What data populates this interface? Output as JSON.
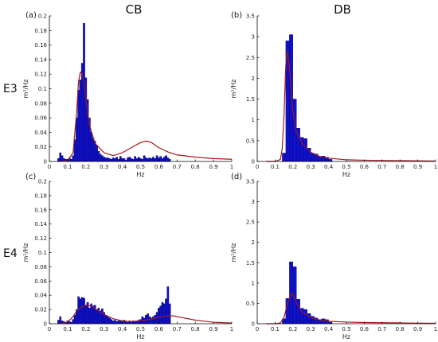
{
  "column_titles": [
    "CB",
    "DB"
  ],
  "row_labels": [
    "E3",
    "E4"
  ],
  "colors": {
    "bar": "#1010c8",
    "bar_edge": "#00007a",
    "fit": "#a0181c",
    "axis": "#000000"
  },
  "chart_data": [
    {
      "panel": "(a)",
      "type": "bar",
      "xlabel": "Hz",
      "ylabel": "m²/Hz",
      "xlim": [
        0,
        1
      ],
      "ylim": [
        0,
        0.2
      ],
      "grid": false,
      "x_ticks": [
        "0",
        "0.1",
        "0.2",
        "0.3",
        "0.4",
        "0.5",
        "0.6",
        "0.7",
        "0.8",
        "0.9",
        "1"
      ],
      "y_ticks": [
        "0",
        "0.02",
        "0.04",
        "0.06",
        "0.08",
        "0.1",
        "0.12",
        "0.14",
        "0.16",
        "0.18",
        "0.2"
      ],
      "bin_width": 0.0098,
      "bars": {
        "x": [
          0.05,
          0.06,
          0.07,
          0.08,
          0.09,
          0.1,
          0.11,
          0.12,
          0.13,
          0.14,
          0.15,
          0.16,
          0.17,
          0.18,
          0.19,
          0.2,
          0.21,
          0.22,
          0.23,
          0.24,
          0.25,
          0.26,
          0.27,
          0.28,
          0.29,
          0.3,
          0.31,
          0.32,
          0.33,
          0.34,
          0.35,
          0.36,
          0.37,
          0.38,
          0.39,
          0.4,
          0.41,
          0.42,
          0.43,
          0.44,
          0.45,
          0.46,
          0.47,
          0.48,
          0.49,
          0.5,
          0.51,
          0.52,
          0.53,
          0.54,
          0.55,
          0.56,
          0.57,
          0.58,
          0.59,
          0.6,
          0.61,
          0.62,
          0.63,
          0.64,
          0.65,
          0.66
        ],
        "values": [
          0.004,
          0.012,
          0.008,
          0.004,
          0.003,
          0.003,
          0.005,
          0.003,
          0.008,
          0.03,
          0.06,
          0.098,
          0.112,
          0.135,
          0.19,
          0.115,
          0.085,
          0.06,
          0.04,
          0.032,
          0.028,
          0.022,
          0.014,
          0.01,
          0.008,
          0.006,
          0.005,
          0.005,
          0.004,
          0.003,
          0.005,
          0.004,
          0.006,
          0.003,
          0.007,
          0.004,
          0.004,
          0.002,
          0.005,
          0.006,
          0.004,
          0.003,
          0.007,
          0.004,
          0.006,
          0.004,
          0.003,
          0.008,
          0.005,
          0.004,
          0.005,
          0.004,
          0.006,
          0.004,
          0.008,
          0.005,
          0.007,
          0.004,
          0.006,
          0.008,
          0.005,
          0.003
        ]
      },
      "fit": {
        "x": [
          0.05,
          0.1,
          0.13,
          0.15,
          0.16,
          0.17,
          0.18,
          0.19,
          0.2,
          0.22,
          0.25,
          0.3,
          0.35,
          0.4,
          0.45,
          0.5,
          0.53,
          0.56,
          0.6,
          0.65,
          0.7,
          0.8,
          0.9,
          1.0
        ],
        "y": [
          0.0,
          0.001,
          0.012,
          0.07,
          0.11,
          0.123,
          0.12,
          0.108,
          0.085,
          0.05,
          0.025,
          0.012,
          0.008,
          0.012,
          0.019,
          0.026,
          0.028,
          0.026,
          0.019,
          0.013,
          0.009,
          0.006,
          0.004,
          0.003
        ]
      }
    },
    {
      "panel": "(b)",
      "type": "bar",
      "xlabel": "Hz",
      "ylabel": "m²/Hz",
      "xlim": [
        0,
        1
      ],
      "ylim": [
        0,
        3.5
      ],
      "grid": false,
      "x_ticks": [
        "0",
        "0.1",
        "0.2",
        "0.3",
        "0.4",
        "0.5",
        "0.6",
        "0.7",
        "0.8",
        "0.9",
        "1"
      ],
      "y_ticks": [
        "0",
        "0.5",
        "1",
        "1.5",
        "2",
        "2.5",
        "3",
        "3.5"
      ],
      "bin_width": 0.0195,
      "bars": {
        "x": [
          0.15,
          0.17,
          0.19,
          0.21,
          0.23,
          0.25,
          0.27,
          0.29,
          0.31,
          0.33,
          0.35,
          0.37,
          0.39,
          0.41
        ],
        "values": [
          0.2,
          2.9,
          3.05,
          1.5,
          0.8,
          0.58,
          0.55,
          0.32,
          0.2,
          0.18,
          0.12,
          0.13,
          0.1,
          0.05
        ]
      },
      "fit": {
        "x": [
          0.05,
          0.1,
          0.13,
          0.14,
          0.15,
          0.16,
          0.17,
          0.18,
          0.19,
          0.2,
          0.22,
          0.25,
          0.3,
          0.35,
          0.4,
          0.5,
          0.6,
          0.8,
          1.0
        ],
        "y": [
          0.0,
          0.0,
          0.05,
          0.3,
          1.1,
          2.3,
          2.65,
          2.3,
          1.7,
          1.2,
          0.7,
          0.45,
          0.22,
          0.12,
          0.08,
          0.04,
          0.03,
          0.02,
          0.01
        ]
      }
    },
    {
      "panel": "(c)",
      "type": "bar",
      "xlabel": "Hz",
      "ylabel": "m²/Hz",
      "xlim": [
        0,
        1
      ],
      "ylim": [
        0,
        0.2
      ],
      "grid": false,
      "x_ticks": [
        "0",
        "0.1",
        "0.2",
        "0.3",
        "0.4",
        "0.5",
        "0.6",
        "0.7",
        "0.8",
        "0.9",
        "1"
      ],
      "y_ticks": [
        "0",
        "0.02",
        "0.04",
        "0.06",
        "0.08",
        "0.1",
        "0.12",
        "0.14",
        "0.16",
        "0.18",
        "0.2"
      ],
      "bin_width": 0.0098,
      "bars": {
        "x": [
          0.05,
          0.06,
          0.07,
          0.08,
          0.09,
          0.1,
          0.11,
          0.12,
          0.13,
          0.14,
          0.15,
          0.16,
          0.17,
          0.18,
          0.19,
          0.2,
          0.21,
          0.22,
          0.23,
          0.24,
          0.25,
          0.26,
          0.27,
          0.28,
          0.29,
          0.3,
          0.31,
          0.32,
          0.33,
          0.34,
          0.35,
          0.36,
          0.37,
          0.38,
          0.39,
          0.4,
          0.41,
          0.42,
          0.43,
          0.44,
          0.45,
          0.46,
          0.47,
          0.48,
          0.49,
          0.5,
          0.51,
          0.52,
          0.53,
          0.54,
          0.55,
          0.56,
          0.57,
          0.58,
          0.59,
          0.6,
          0.61,
          0.62,
          0.63,
          0.64,
          0.65,
          0.66
        ],
        "values": [
          0.005,
          0.01,
          0.004,
          0.003,
          0.002,
          0.004,
          0.003,
          0.002,
          0.006,
          0.012,
          0.02,
          0.038,
          0.035,
          0.037,
          0.036,
          0.025,
          0.03,
          0.022,
          0.028,
          0.025,
          0.026,
          0.02,
          0.022,
          0.018,
          0.021,
          0.016,
          0.012,
          0.01,
          0.008,
          0.006,
          0.004,
          0.005,
          0.003,
          0.004,
          0.004,
          0.003,
          0.005,
          0.003,
          0.002,
          0.004,
          0.003,
          0.004,
          0.003,
          0.004,
          0.005,
          0.006,
          0.01,
          0.008,
          0.012,
          0.014,
          0.01,
          0.008,
          0.01,
          0.012,
          0.016,
          0.022,
          0.025,
          0.03,
          0.028,
          0.035,
          0.052,
          0.028
        ]
      },
      "fit": {
        "x": [
          0.05,
          0.1,
          0.13,
          0.15,
          0.18,
          0.2,
          0.23,
          0.25,
          0.3,
          0.35,
          0.4,
          0.45,
          0.5,
          0.55,
          0.6,
          0.65,
          0.68,
          0.72,
          0.8,
          0.9,
          1.0
        ],
        "y": [
          0.0,
          0.002,
          0.01,
          0.018,
          0.024,
          0.026,
          0.025,
          0.021,
          0.013,
          0.007,
          0.004,
          0.003,
          0.004,
          0.006,
          0.009,
          0.011,
          0.011,
          0.009,
          0.005,
          0.002,
          0.001
        ]
      }
    },
    {
      "panel": "(d)",
      "type": "bar",
      "xlabel": "Hz",
      "ylabel": "m²/Hz",
      "xlim": [
        0,
        1
      ],
      "ylim": [
        0,
        3.5
      ],
      "grid": false,
      "x_ticks": [
        "0",
        "0.1",
        "0.2",
        "0.3",
        "0.4",
        "0.5",
        "0.6",
        "0.7",
        "0.8",
        "0.9",
        "1"
      ],
      "y_ticks": [
        "0",
        "0.5",
        "1",
        "1.5",
        "2",
        "2.5",
        "3",
        "3.5"
      ],
      "bin_width": 0.0195,
      "bars": {
        "x": [
          0.15,
          0.17,
          0.19,
          0.21,
          0.23,
          0.25,
          0.27,
          0.29,
          0.31,
          0.33,
          0.35,
          0.37,
          0.39,
          0.41
        ],
        "values": [
          0.12,
          0.62,
          1.52,
          1.4,
          0.6,
          0.38,
          0.35,
          0.25,
          0.18,
          0.14,
          0.1,
          0.12,
          0.1,
          0.04
        ]
      },
      "fit": {
        "x": [
          0.05,
          0.1,
          0.13,
          0.15,
          0.17,
          0.19,
          0.2,
          0.22,
          0.25,
          0.3,
          0.35,
          0.4,
          0.5,
          0.6,
          0.8,
          1.0
        ],
        "y": [
          0.0,
          0.0,
          0.02,
          0.15,
          0.5,
          0.75,
          0.72,
          0.5,
          0.3,
          0.15,
          0.09,
          0.06,
          0.04,
          0.03,
          0.02,
          0.01
        ]
      }
    }
  ]
}
